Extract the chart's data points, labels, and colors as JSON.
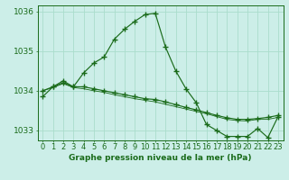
{
  "title": "Graphe pression niveau de la mer (hPa)",
  "x_labels": [
    "0",
    "1",
    "2",
    "3",
    "4",
    "5",
    "6",
    "7",
    "8",
    "9",
    "10",
    "11",
    "12",
    "13",
    "14",
    "15",
    "16",
    "17",
    "18",
    "19",
    "20",
    "21",
    "22",
    "23"
  ],
  "series1": [
    1033.85,
    1034.1,
    1034.25,
    1034.1,
    1034.45,
    1034.7,
    1034.85,
    1035.3,
    1035.55,
    1035.75,
    1035.92,
    1035.95,
    1035.1,
    1034.5,
    1034.05,
    1033.7,
    1033.15,
    1033.0,
    1032.85,
    1032.85,
    1032.85,
    1033.05,
    1032.82,
    1033.35
  ],
  "series2": [
    1034.0,
    1034.1,
    1034.2,
    1034.1,
    1034.1,
    1034.05,
    1034.0,
    1033.95,
    1033.9,
    1033.85,
    1033.8,
    1033.78,
    1033.72,
    1033.65,
    1033.58,
    1033.52,
    1033.45,
    1033.38,
    1033.32,
    1033.28,
    1033.28,
    1033.3,
    1033.33,
    1033.38
  ],
  "series3": [
    1034.0,
    1034.08,
    1034.18,
    1034.08,
    1034.05,
    1034.0,
    1033.96,
    1033.9,
    1033.85,
    1033.8,
    1033.76,
    1033.72,
    1033.66,
    1033.6,
    1033.54,
    1033.48,
    1033.42,
    1033.35,
    1033.28,
    1033.25,
    1033.24,
    1033.28,
    1033.28,
    1033.33
  ],
  "line_color": "#1a6b1a",
  "bg_color": "#cceee8",
  "grid_color": "#aaddcc",
  "ylim": [
    1032.75,
    1036.15
  ],
  "yticks": [
    1033,
    1034,
    1035,
    1036
  ],
  "label_fontsize": 6.5,
  "title_fontsize": 6.5
}
